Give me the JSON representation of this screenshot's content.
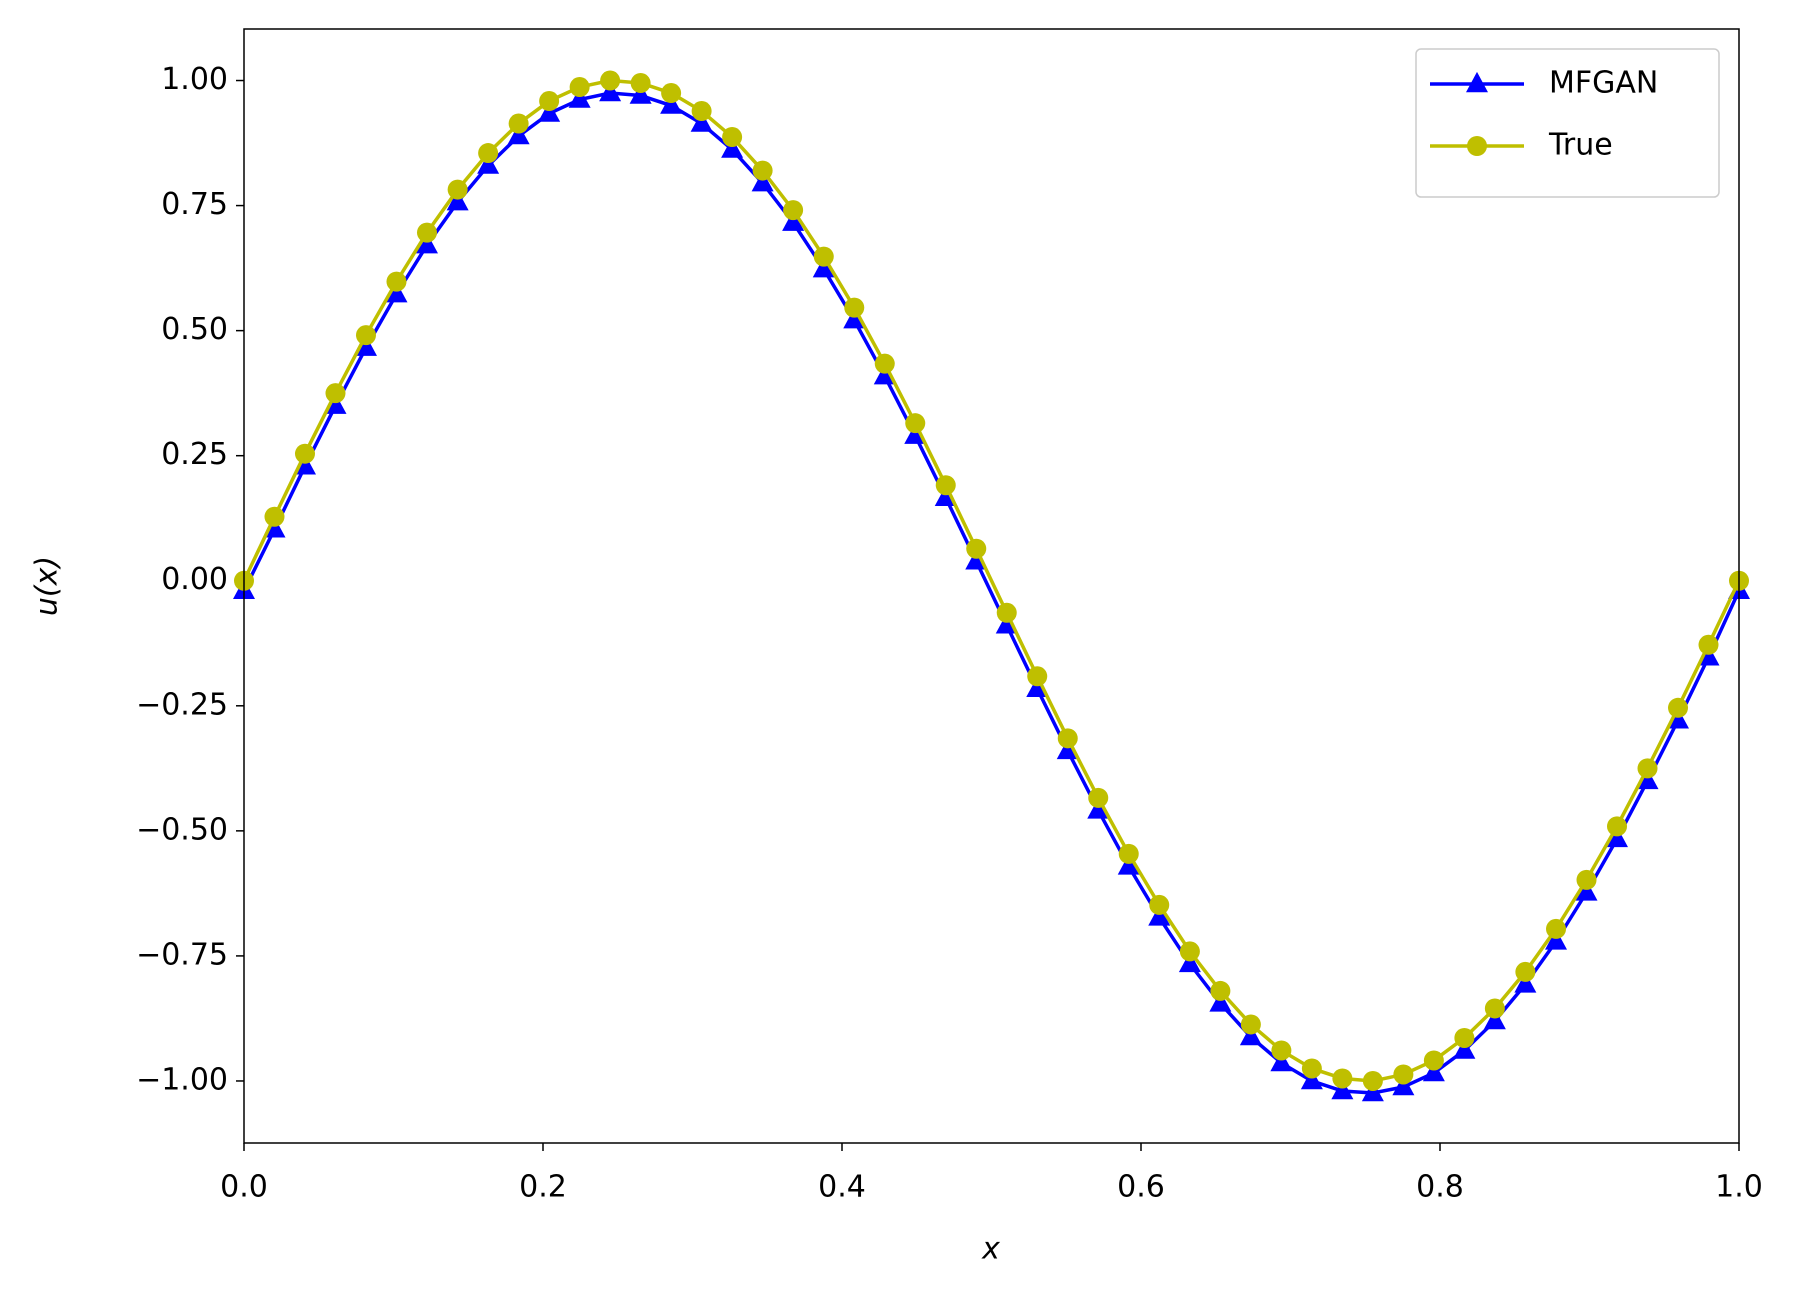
{
  "chart_data": {
    "type": "line",
    "xlabel": "x",
    "ylabel": "u(x)",
    "x": [
      0,
      0.0204,
      0.0408,
      0.0612,
      0.0816,
      0.102,
      0.1224,
      0.1429,
      0.1633,
      0.1837,
      0.2041,
      0.2245,
      0.2449,
      0.2653,
      0.2857,
      0.3061,
      0.3265,
      0.3469,
      0.3673,
      0.3878,
      0.4082,
      0.4286,
      0.449,
      0.4694,
      0.4898,
      0.5102,
      0.5306,
      0.551,
      0.5714,
      0.5918,
      0.6122,
      0.6327,
      0.6531,
      0.6735,
      0.6939,
      0.7143,
      0.7347,
      0.7551,
      0.7755,
      0.7959,
      0.8163,
      0.8367,
      0.8571,
      0.8776,
      0.898,
      0.9184,
      0.9388,
      0.9592,
      0.9796,
      1
    ],
    "series": [
      {
        "name": "MFGAN",
        "color": "#0000ff",
        "marker": "triangle",
        "values": [
          -0.02,
          0.103,
          0.229,
          0.35,
          0.466,
          0.573,
          0.671,
          0.757,
          0.83,
          0.889,
          0.934,
          0.962,
          0.975,
          0.97,
          0.95,
          0.914,
          0.862,
          0.795,
          0.716,
          0.623,
          0.521,
          0.409,
          0.29,
          0.166,
          0.039,
          -0.089,
          -0.216,
          -0.34,
          -0.459,
          -0.571,
          -0.673,
          -0.766,
          -0.845,
          -0.912,
          -0.964,
          -1.0,
          -1.02,
          -1.024,
          -1.012,
          -0.984,
          -0.939,
          -0.88,
          -0.807,
          -0.721,
          -0.623,
          -0.516,
          -0.4,
          -0.279,
          -0.153,
          -0.02
        ]
      },
      {
        "name": "True",
        "color": "#bfbf00",
        "marker": "circle",
        "values": [
          0,
          0.128,
          0.254,
          0.375,
          0.491,
          0.598,
          0.696,
          0.782,
          0.855,
          0.914,
          0.959,
          0.987,
          1.0,
          0.995,
          0.975,
          0.939,
          0.887,
          0.82,
          0.741,
          0.648,
          0.546,
          0.434,
          0.315,
          0.191,
          0.064,
          -0.064,
          -0.191,
          -0.315,
          -0.434,
          -0.546,
          -0.648,
          -0.741,
          -0.82,
          -0.887,
          -0.939,
          -0.975,
          -0.995,
          -1.0,
          -0.987,
          -0.959,
          -0.914,
          -0.855,
          -0.782,
          -0.696,
          -0.598,
          -0.491,
          -0.375,
          -0.254,
          -0.128,
          0
        ]
      }
    ],
    "xlim": [
      0,
      1
    ],
    "ylim": [
      -1.124,
      1.103
    ],
    "xticks": [
      {
        "value": 0,
        "label": "0.0"
      },
      {
        "value": 0.2,
        "label": "0.2"
      },
      {
        "value": 0.4,
        "label": "0.4"
      },
      {
        "value": 0.6,
        "label": "0.6"
      },
      {
        "value": 0.8,
        "label": "0.8"
      },
      {
        "value": 1,
        "label": "1.0"
      }
    ],
    "yticks": [
      {
        "value": 1,
        "label": "1.00"
      },
      {
        "value": 0.75,
        "label": "0.75"
      },
      {
        "value": 0.5,
        "label": "0.50"
      },
      {
        "value": 0.25,
        "label": "0.25"
      },
      {
        "value": 0,
        "label": "0.00"
      },
      {
        "value": -0.25,
        "label": "−0.25"
      },
      {
        "value": -0.5,
        "label": "−0.50"
      },
      {
        "value": -0.75,
        "label": "−0.75"
      },
      {
        "value": -1,
        "label": "−1.00"
      }
    ],
    "legend": "upper right",
    "grid": false
  }
}
